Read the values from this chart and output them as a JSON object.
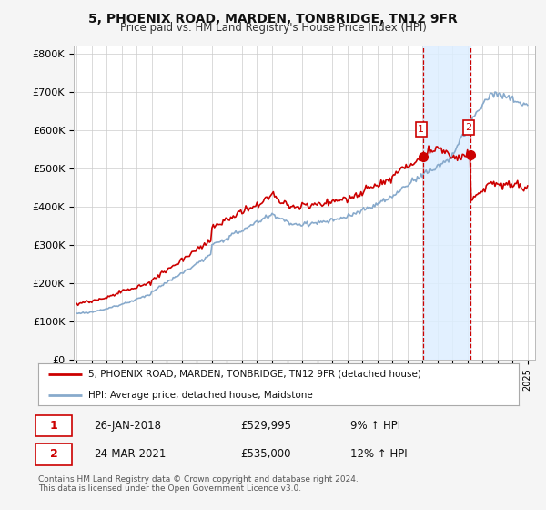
{
  "title": "5, PHOENIX ROAD, MARDEN, TONBRIDGE, TN12 9FR",
  "subtitle": "Price paid vs. HM Land Registry's House Price Index (HPI)",
  "legend_line1": "5, PHOENIX ROAD, MARDEN, TONBRIDGE, TN12 9FR (detached house)",
  "legend_line2": "HPI: Average price, detached house, Maidstone",
  "footnote": "Contains HM Land Registry data © Crown copyright and database right 2024.\nThis data is licensed under the Open Government Licence v3.0.",
  "transaction1_date": "26-JAN-2018",
  "transaction1_price": "£529,995",
  "transaction1_hpi": "9% ↑ HPI",
  "transaction2_date": "24-MAR-2021",
  "transaction2_price": "£535,000",
  "transaction2_hpi": "12% ↑ HPI",
  "price_line_color": "#cc0000",
  "hpi_line_color": "#88aacc",
  "marker_color": "#cc0000",
  "vline_color": "#cc0000",
  "highlight_color": "#ddeeff",
  "ylim": [
    0,
    820000
  ],
  "yticks": [
    0,
    100000,
    200000,
    300000,
    400000,
    500000,
    600000,
    700000,
    800000
  ],
  "ytick_labels": [
    "£0",
    "£100K",
    "£200K",
    "£300K",
    "£400K",
    "£500K",
    "£600K",
    "£700K",
    "£800K"
  ],
  "background_color": "#f5f5f5",
  "plot_bg_color": "#ffffff",
  "grid_color": "#cccccc",
  "marker1_x": 2018.07,
  "marker1_y": 529995,
  "marker2_x": 2021.23,
  "marker2_y": 535000,
  "vline1_x": 2018.07,
  "vline2_x": 2021.23,
  "highlight_x1": 2018.07,
  "highlight_x2": 2021.23,
  "xmin": 1994.8,
  "xmax": 2025.5
}
